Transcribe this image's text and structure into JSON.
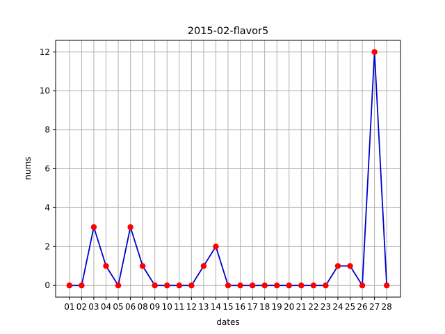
{
  "chart_data": {
    "type": "line",
    "title": "2015-02-flavor5",
    "xlabel": "dates",
    "ylabel": "nums",
    "categories": [
      "01",
      "02",
      "03",
      "04",
      "05",
      "06",
      "08",
      "09",
      "10",
      "11",
      "12",
      "13",
      "14",
      "15",
      "16",
      "17",
      "18",
      "19",
      "20",
      "21",
      "22",
      "23",
      "24",
      "25",
      "26",
      "27",
      "28"
    ],
    "series": [
      {
        "values": [
          0,
          0,
          3,
          1,
          0,
          3,
          1,
          0,
          0,
          0,
          0,
          1,
          2,
          0,
          0,
          0,
          0,
          0,
          0,
          0,
          0,
          0,
          1,
          1,
          0,
          12,
          0
        ]
      }
    ],
    "ylim": [
      -0.6,
      12.6
    ],
    "yticks": [
      0,
      2,
      4,
      6,
      8,
      10,
      12
    ],
    "grid": true,
    "colors": {
      "line": "#0000cc",
      "marker": "#ff0000"
    }
  }
}
